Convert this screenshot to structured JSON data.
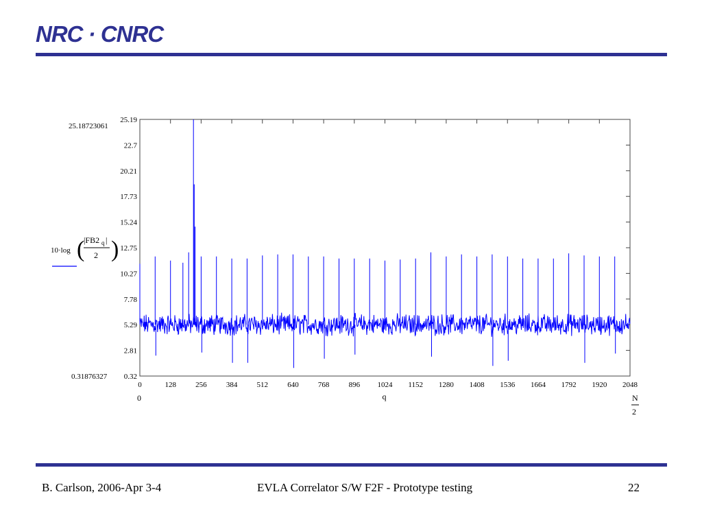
{
  "slide": {
    "logo": "NRC · CNRC",
    "footer_left": "B. Carlson, 2006-Apr 3-4",
    "footer_center": "EVLA Correlator S/W F2F - Prototype testing",
    "page_number": "22"
  },
  "colors": {
    "brand": "#2e3192",
    "series": "#0000ff"
  },
  "chart_data": {
    "type": "line",
    "title": "",
    "xlabel": "q",
    "xlim": [
      0,
      2048
    ],
    "ylim": [
      0.31876327,
      25.18723061
    ],
    "ylim_labels": [
      "25.18723061",
      "0.31876327"
    ],
    "x_range_labels": [
      "0",
      "N/2"
    ],
    "x_ticks": [
      "0",
      "128",
      "256",
      "384",
      "512",
      "640",
      "768",
      "896",
      "1024",
      "1152",
      "1280",
      "1408",
      "1536",
      "1664",
      "1792",
      "1920",
      "2048"
    ],
    "y_ticks": [
      "0.32",
      "2.81",
      "5.29",
      "7.78",
      "10.27",
      "12.75",
      "15.24",
      "17.73",
      "20.21",
      "22.7",
      "25.19"
    ],
    "ylabel": "10·log(|FB2_q|/2)",
    "grid": false,
    "series": [
      {
        "baseline": 5.3,
        "spikes": [
          {
            "x": 0,
            "y": 11.2
          },
          {
            "x": 64,
            "y": 11.9
          },
          {
            "x": 128,
            "y": 11.5
          },
          {
            "x": 180,
            "y": 11.3
          },
          {
            "x": 204,
            "y": 12.3
          },
          {
            "x": 224,
            "y": 25.19
          },
          {
            "x": 227,
            "y": 18.9
          },
          {
            "x": 231,
            "y": 14.8
          },
          {
            "x": 256,
            "y": 11.9
          },
          {
            "x": 320,
            "y": 11.9
          },
          {
            "x": 384,
            "y": 11.7
          },
          {
            "x": 448,
            "y": 11.7
          },
          {
            "x": 512,
            "y": 12.0
          },
          {
            "x": 576,
            "y": 12.1
          },
          {
            "x": 640,
            "y": 12.1
          },
          {
            "x": 704,
            "y": 11.9
          },
          {
            "x": 768,
            "y": 11.9
          },
          {
            "x": 832,
            "y": 11.7
          },
          {
            "x": 896,
            "y": 11.7
          },
          {
            "x": 960,
            "y": 11.7
          },
          {
            "x": 1024,
            "y": 11.5
          },
          {
            "x": 1088,
            "y": 11.6
          },
          {
            "x": 1152,
            "y": 11.7
          },
          {
            "x": 1216,
            "y": 12.3
          },
          {
            "x": 1280,
            "y": 11.9
          },
          {
            "x": 1344,
            "y": 12.1
          },
          {
            "x": 1408,
            "y": 11.9
          },
          {
            "x": 1472,
            "y": 12.1
          },
          {
            "x": 1536,
            "y": 11.9
          },
          {
            "x": 1600,
            "y": 11.7
          },
          {
            "x": 1664,
            "y": 11.7
          },
          {
            "x": 1728,
            "y": 11.7
          },
          {
            "x": 1792,
            "y": 12.2
          },
          {
            "x": 1856,
            "y": 12.0
          },
          {
            "x": 1920,
            "y": 11.9
          },
          {
            "x": 1984,
            "y": 11.9
          }
        ],
        "dips": [
          {
            "x": 64,
            "y": 2.3
          },
          {
            "x": 256,
            "y": 2.6
          },
          {
            "x": 384,
            "y": 1.6
          },
          {
            "x": 448,
            "y": 1.6
          },
          {
            "x": 640,
            "y": 1.1
          },
          {
            "x": 768,
            "y": 2.0
          },
          {
            "x": 896,
            "y": 2.4
          },
          {
            "x": 1216,
            "y": 2.2
          },
          {
            "x": 1472,
            "y": 1.3
          },
          {
            "x": 1536,
            "y": 1.8
          },
          {
            "x": 1856,
            "y": 1.6
          },
          {
            "x": 1984,
            "y": 2.5
          }
        ]
      }
    ]
  }
}
